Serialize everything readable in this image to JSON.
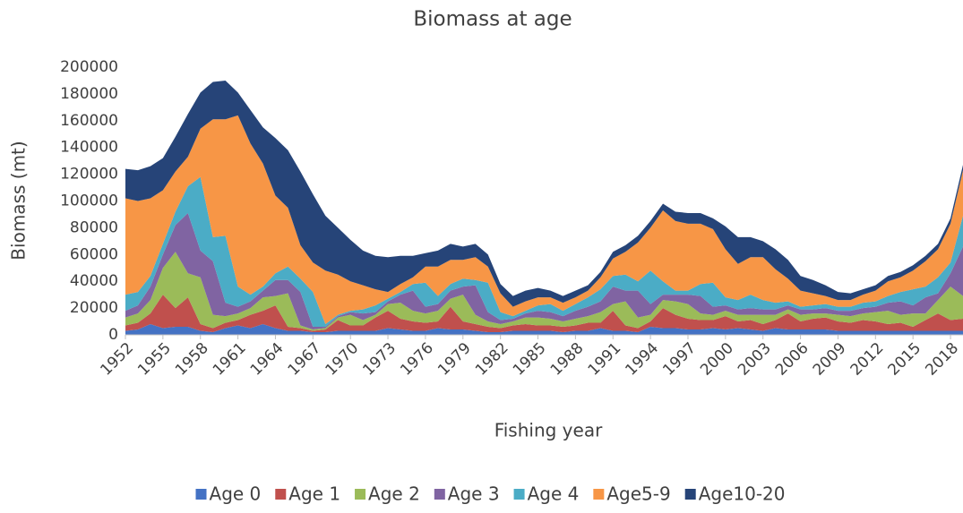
{
  "chart_data": {
    "type": "stacked_area",
    "title": "Biomass at age",
    "x_label": "Fishing year",
    "y_label": "Biomass (mt)",
    "x": [
      1952,
      1953,
      1954,
      1955,
      1956,
      1957,
      1958,
      1959,
      1960,
      1961,
      1962,
      1963,
      1964,
      1965,
      1966,
      1967,
      1968,
      1969,
      1970,
      1971,
      1972,
      1973,
      1974,
      1975,
      1976,
      1977,
      1978,
      1979,
      1980,
      1981,
      1982,
      1983,
      1984,
      1985,
      1986,
      1987,
      1988,
      1989,
      1990,
      1991,
      1992,
      1993,
      1994,
      1995,
      1996,
      1997,
      1998,
      1999,
      2000,
      2001,
      2002,
      2003,
      2004,
      2005,
      2006,
      2007,
      2008,
      2009,
      2010,
      2011,
      2012,
      2013,
      2014,
      2015,
      2016,
      2017,
      2018,
      2019
    ],
    "xlim": [
      1952,
      2019
    ],
    "xticks": [
      1952,
      1955,
      1958,
      1961,
      1964,
      1967,
      1970,
      1973,
      1976,
      1979,
      1982,
      1985,
      1988,
      1991,
      1994,
      1997,
      2000,
      2003,
      2006,
      2009,
      2012,
      2015,
      2018
    ],
    "ylim": [
      0,
      200000
    ],
    "yticks": [
      0,
      20000,
      40000,
      60000,
      80000,
      100000,
      120000,
      140000,
      160000,
      180000,
      200000
    ],
    "legend": "bottom",
    "series": [
      {
        "name": "Age 0",
        "color": "#4472c4",
        "values": [
          3000,
          4000,
          8000,
          5000,
          6000,
          6000,
          3000,
          2000,
          5000,
          7000,
          5000,
          8000,
          5000,
          3000,
          3000,
          2000,
          2000,
          3000,
          3000,
          3000,
          3000,
          5000,
          4000,
          3000,
          3000,
          5000,
          4000,
          4000,
          3000,
          2000,
          2000,
          3000,
          3000,
          3000,
          3000,
          2000,
          3000,
          3000,
          5000,
          3000,
          3000,
          2000,
          6000,
          5000,
          5000,
          4000,
          4000,
          5000,
          4000,
          5000,
          4000,
          3000,
          5000,
          4000,
          4000,
          4000,
          4000,
          3000,
          3000,
          3000,
          3000,
          3000,
          3000,
          3000,
          3000,
          3000,
          3000,
          3000
        ]
      },
      {
        "name": "Age 1",
        "color": "#c0504d",
        "values": [
          4000,
          5000,
          8000,
          25000,
          14000,
          22000,
          5000,
          3000,
          4000,
          4000,
          10000,
          10000,
          17000,
          3000,
          2000,
          1000,
          2000,
          8000,
          4000,
          4000,
          10000,
          13000,
          8000,
          7000,
          6000,
          5000,
          17000,
          6000,
          5000,
          4000,
          3000,
          4000,
          5000,
          4000,
          4000,
          4000,
          4000,
          6000,
          4000,
          15000,
          4000,
          3000,
          4000,
          15000,
          10000,
          8000,
          7000,
          6000,
          10000,
          5000,
          7000,
          5000,
          6000,
          12000,
          6000,
          8000,
          9000,
          7000,
          6000,
          8000,
          7000,
          5000,
          6000,
          3000,
          8000,
          13000,
          8000,
          9000
        ]
      },
      {
        "name": "Age 2",
        "color": "#9bbb59",
        "values": [
          6000,
          7000,
          10000,
          20000,
          42000,
          18000,
          35000,
          10000,
          5000,
          5000,
          5000,
          10000,
          7000,
          25000,
          2000,
          1000,
          1000,
          2000,
          8000,
          4000,
          2000,
          5000,
          12000,
          8000,
          7000,
          8000,
          6000,
          20000,
          7000,
          4000,
          3000,
          3000,
          5000,
          6000,
          5000,
          4000,
          5000,
          5000,
          8000,
          5000,
          18000,
          8000,
          5000,
          6000,
          10000,
          11000,
          5000,
          4000,
          4000,
          5000,
          4000,
          7000,
          4000,
          3000,
          5000,
          4000,
          3000,
          5000,
          5000,
          5000,
          7000,
          10000,
          6000,
          10000,
          5000,
          10000,
          25000,
          17000
        ]
      },
      {
        "name": "Age 3",
        "color": "#8064a2",
        "values": [
          5000,
          6000,
          10000,
          10000,
          20000,
          45000,
          20000,
          40000,
          10000,
          5000,
          5000,
          5000,
          12000,
          10000,
          25000,
          2000,
          1000,
          1000,
          2000,
          5000,
          2000,
          2000,
          6000,
          15000,
          5000,
          5000,
          6000,
          6000,
          22000,
          7000,
          3000,
          2000,
          3000,
          5000,
          5000,
          4000,
          6000,
          7000,
          8000,
          13000,
          8000,
          20000,
          8000,
          4000,
          5000,
          7000,
          13000,
          6000,
          4000,
          4000,
          5000,
          4000,
          4000,
          3000,
          4000,
          3000,
          4000,
          3000,
          4000,
          4000,
          4000,
          6000,
          10000,
          6000,
          12000,
          5000,
          10000,
          37000
        ]
      },
      {
        "name": "Age 4",
        "color": "#4bacc6",
        "values": [
          12000,
          10000,
          8000,
          8000,
          10000,
          20000,
          55000,
          18000,
          50000,
          15000,
          5000,
          3000,
          5000,
          10000,
          10000,
          26000,
          2000,
          1000,
          1000,
          3000,
          5000,
          2000,
          2000,
          5000,
          18000,
          6000,
          5000,
          6000,
          4000,
          22000,
          6000,
          2000,
          2000,
          4000,
          6000,
          4000,
          5000,
          7000,
          9000,
          8000,
          12000,
          7000,
          25000,
          10000,
          3000,
          3000,
          9000,
          18000,
          6000,
          7000,
          10000,
          7000,
          5000,
          3000,
          2000,
          3000,
          3000,
          3000,
          3000,
          4000,
          4000,
          5000,
          7000,
          12000,
          8000,
          12000,
          8000,
          23000
        ]
      },
      {
        "name": "Age5-9",
        "color": "#f79646",
        "values": [
          72000,
          68000,
          58000,
          40000,
          30000,
          22000,
          36000,
          88000,
          87000,
          128000,
          113000,
          92000,
          58000,
          44000,
          25000,
          22000,
          40000,
          30000,
          22000,
          18000,
          12000,
          5000,
          6000,
          5000,
          12000,
          22000,
          18000,
          14000,
          17000,
          12000,
          14000,
          7000,
          7000,
          6000,
          5000,
          6000,
          5000,
          5000,
          9000,
          13000,
          17000,
          29000,
          32000,
          53000,
          52000,
          50000,
          45000,
          40000,
          36000,
          27000,
          28000,
          32000,
          25000,
          17000,
          12000,
          9000,
          6000,
          5000,
          5000,
          6000,
          8000,
          11000,
          11000,
          14000,
          19000,
          21000,
          29000,
          34000
        ]
      },
      {
        "name": "Age10-20",
        "color": "#264478",
        "values": [
          22000,
          23000,
          24000,
          24000,
          26000,
          32000,
          27000,
          28000,
          29000,
          17000,
          25000,
          27000,
          43000,
          43000,
          55000,
          51000,
          41000,
          35000,
          31000,
          26000,
          25000,
          26000,
          21000,
          16000,
          10000,
          12000,
          12000,
          10000,
          10000,
          9000,
          7000,
          8000,
          8000,
          7000,
          5000,
          5000,
          5000,
          4000,
          4000,
          5000,
          5000,
          5000,
          5000,
          5000,
          7000,
          8000,
          8000,
          8000,
          17000,
          20000,
          15000,
          12000,
          15000,
          14000,
          11000,
          10000,
          8000,
          6000,
          5000,
          4000,
          4000,
          4000,
          4000,
          4000,
          4000,
          4000,
          4000,
          4000
        ]
      }
    ]
  }
}
